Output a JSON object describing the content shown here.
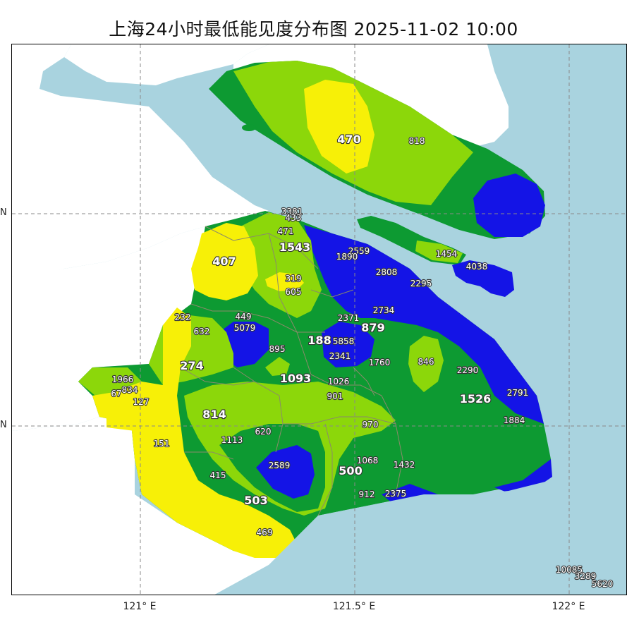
{
  "title": "上海24小时最低能见度分布图 2025-11-02 10:00",
  "axes": {
    "lon_labels": [
      "121° E",
      "121.5° E",
      "122° E"
    ],
    "lat_labels": [
      "N",
      "N"
    ]
  },
  "colors": {
    "sea": "#a9d3df",
    "land_outside": "#ffffff",
    "level_yellow": "#f7f007",
    "level_lightgreen": "#8cd70a",
    "level_green": "#0d9a32",
    "level_blue": "#1414e6",
    "district_line": "#8a8a6a"
  },
  "stations": [
    {
      "label": "470",
      "big": true
    },
    {
      "label": "818",
      "big": false
    },
    {
      "label": "3381",
      "big": false
    },
    {
      "label": "433",
      "big": false
    },
    {
      "label": "471",
      "big": false
    },
    {
      "label": "1543",
      "big": true
    },
    {
      "label": "407",
      "big": true
    },
    {
      "label": "2559",
      "big": false
    },
    {
      "label": "1890",
      "big": false
    },
    {
      "label": "1454",
      "big": false
    },
    {
      "label": "4038",
      "big": false
    },
    {
      "label": "2808",
      "big": false
    },
    {
      "label": "2295",
      "big": false
    },
    {
      "label": "319",
      "big": false
    },
    {
      "label": "605",
      "big": false
    },
    {
      "label": "2734",
      "big": false
    },
    {
      "label": "232",
      "big": false
    },
    {
      "label": "449",
      "big": false
    },
    {
      "label": "5079",
      "big": false
    },
    {
      "label": "2371",
      "big": false
    },
    {
      "label": "879",
      "big": true
    },
    {
      "label": "632",
      "big": false
    },
    {
      "label": "188",
      "big": true
    },
    {
      "label": "5858",
      "big": false
    },
    {
      "label": "895",
      "big": false
    },
    {
      "label": "2341",
      "big": false
    },
    {
      "label": "1760",
      "big": false
    },
    {
      "label": "846",
      "big": false
    },
    {
      "label": "274",
      "big": true
    },
    {
      "label": "2290",
      "big": false
    },
    {
      "label": "1966",
      "big": false
    },
    {
      "label": "834",
      "big": false
    },
    {
      "label": "67",
      "big": false
    },
    {
      "label": "1093",
      "big": true
    },
    {
      "label": "1026",
      "big": false
    },
    {
      "label": "2791",
      "big": false
    },
    {
      "label": "127",
      "big": false
    },
    {
      "label": "901",
      "big": false
    },
    {
      "label": "1526",
      "big": true
    },
    {
      "label": "814",
      "big": true
    },
    {
      "label": "1884",
      "big": false
    },
    {
      "label": "970",
      "big": false
    },
    {
      "label": "620",
      "big": false
    },
    {
      "label": "1113",
      "big": false
    },
    {
      "label": "151",
      "big": false
    },
    {
      "label": "2589",
      "big": false
    },
    {
      "label": "1068",
      "big": false
    },
    {
      "label": "1432",
      "big": false
    },
    {
      "label": "500",
      "big": true
    },
    {
      "label": "415",
      "big": false
    },
    {
      "label": "503",
      "big": true
    },
    {
      "label": "912",
      "big": false
    },
    {
      "label": "2375",
      "big": false
    },
    {
      "label": "469",
      "big": false
    },
    {
      "label": "10085",
      "big": false
    },
    {
      "label": "3289",
      "big": false
    },
    {
      "label": "5620",
      "big": false
    }
  ]
}
